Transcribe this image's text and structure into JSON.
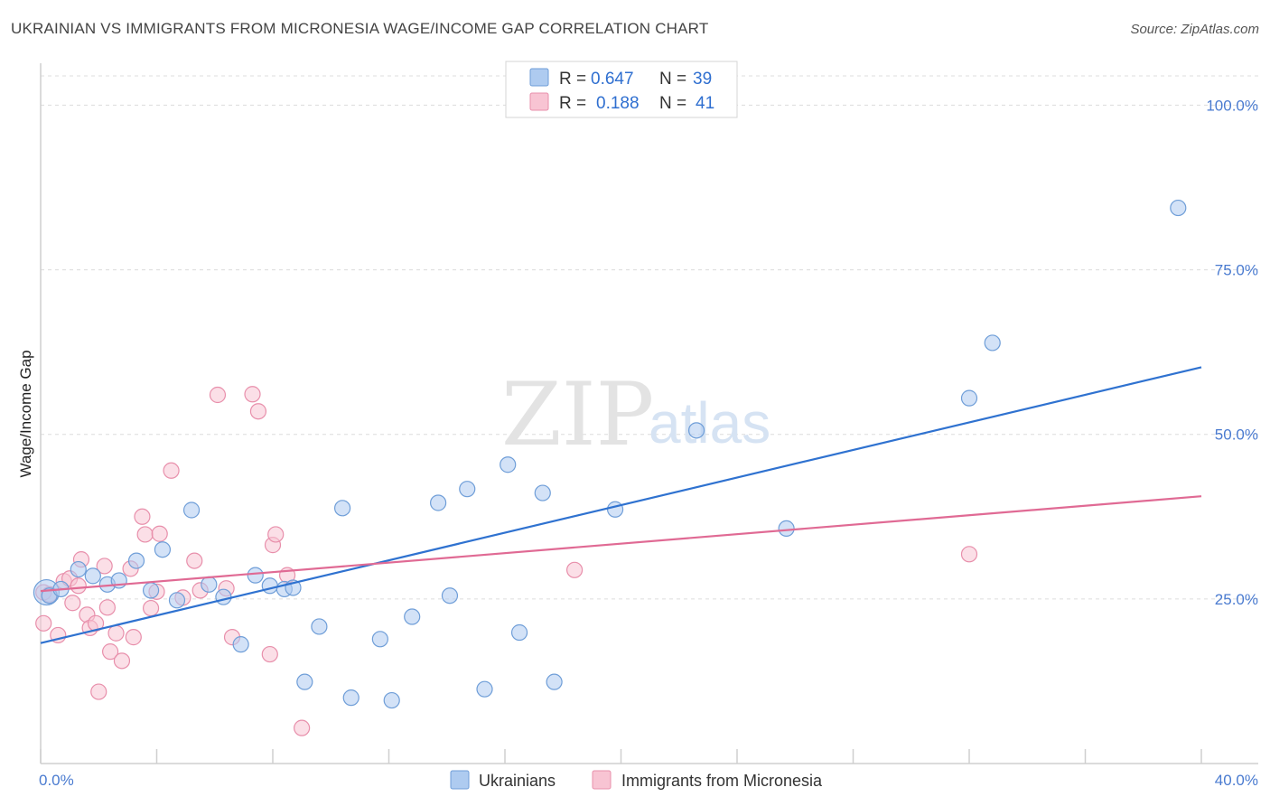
{
  "header": {
    "title": "UKRAINIAN VS IMMIGRANTS FROM MICRONESIA WAGE/INCOME GAP CORRELATION CHART",
    "source": "Source: ZipAtlas.com"
  },
  "watermark": {
    "zip": "ZIP",
    "atlas": "atlas"
  },
  "legend": {
    "row1": {
      "r_label": "R =",
      "r_value": "0.647",
      "n_label": "N =",
      "n_value": "39"
    },
    "row2": {
      "r_label": "R =",
      "r_value": "0.188",
      "n_label": "N =",
      "n_value": "41"
    }
  },
  "bottom_legend": {
    "series1": "Ukrainians",
    "series2": "Immigrants from Micronesia"
  },
  "colors": {
    "blue_fill": "#aecbf0",
    "blue_stroke": "#6f9ed8",
    "blue_line": "#2f72d0",
    "pink_fill": "#f8c4d3",
    "pink_stroke": "#e88fab",
    "pink_line": "#e06a94",
    "tick_text": "#4a7bd0",
    "grid": "#dcdcdc"
  },
  "chart_data": {
    "type": "scatter",
    "title": "UKRAINIAN VS IMMIGRANTS FROM MICRONESIA WAGE/INCOME GAP CORRELATION CHART",
    "xlabel": "",
    "ylabel": "Wage/Income Gap",
    "xlim": [
      0,
      40
    ],
    "ylim": [
      0,
      105
    ],
    "x_tick_labels": [
      "0.0%",
      "40.0%"
    ],
    "y_ticks": [
      25,
      50,
      75,
      100
    ],
    "y_tick_labels": [
      "25.0%",
      "50.0%",
      "75.0%",
      "100.0%"
    ],
    "grid": "horizontal dashed",
    "legend_position": "top-center",
    "series": [
      {
        "name": "Ukrainians",
        "R": 0.647,
        "N": 39,
        "trend": {
          "x": [
            0,
            40
          ],
          "y": [
            18.3,
            60.2
          ]
        },
        "points": [
          [
            0.3,
            25.5
          ],
          [
            0.7,
            26.5
          ],
          [
            1.3,
            29.5
          ],
          [
            1.8,
            28.5
          ],
          [
            2.3,
            27.2
          ],
          [
            2.7,
            27.8
          ],
          [
            3.3,
            30.8
          ],
          [
            3.8,
            26.3
          ],
          [
            4.2,
            32.5
          ],
          [
            4.7,
            24.8
          ],
          [
            5.2,
            38.5
          ],
          [
            5.8,
            27.2
          ],
          [
            6.3,
            25.3
          ],
          [
            6.9,
            18.1
          ],
          [
            7.4,
            28.6
          ],
          [
            7.9,
            27.0
          ],
          [
            8.4,
            26.5
          ],
          [
            8.7,
            26.7
          ],
          [
            9.1,
            12.4
          ],
          [
            9.6,
            20.8
          ],
          [
            10.4,
            38.8
          ],
          [
            10.7,
            10.0
          ],
          [
            11.7,
            18.9
          ],
          [
            12.1,
            9.6
          ],
          [
            12.8,
            22.3
          ],
          [
            13.7,
            39.6
          ],
          [
            14.1,
            25.5
          ],
          [
            14.7,
            41.7
          ],
          [
            15.3,
            11.3
          ],
          [
            16.1,
            45.4
          ],
          [
            16.5,
            19.9
          ],
          [
            17.3,
            41.1
          ],
          [
            17.7,
            12.4
          ],
          [
            19.8,
            38.6
          ],
          [
            22.6,
            50.6
          ],
          [
            25.7,
            35.7
          ],
          [
            32.0,
            55.5
          ],
          [
            32.8,
            63.9
          ],
          [
            39.2,
            84.4
          ]
        ]
      },
      {
        "name": "Immigrants from Micronesia",
        "R": 0.188,
        "N": 41,
        "trend": {
          "x": [
            0,
            40
          ],
          "y": [
            26.2,
            40.6
          ]
        },
        "points": [
          [
            0.1,
            21.3
          ],
          [
            0.3,
            25.7
          ],
          [
            0.6,
            19.5
          ],
          [
            0.8,
            27.7
          ],
          [
            1.0,
            28.1
          ],
          [
            1.1,
            24.4
          ],
          [
            1.3,
            27.0
          ],
          [
            1.4,
            31.0
          ],
          [
            1.6,
            22.6
          ],
          [
            1.7,
            20.6
          ],
          [
            1.9,
            21.3
          ],
          [
            2.0,
            10.9
          ],
          [
            2.2,
            30.0
          ],
          [
            2.3,
            23.7
          ],
          [
            2.4,
            17.0
          ],
          [
            2.6,
            19.8
          ],
          [
            2.8,
            15.6
          ],
          [
            3.1,
            29.6
          ],
          [
            3.2,
            19.2
          ],
          [
            3.5,
            37.5
          ],
          [
            3.6,
            34.8
          ],
          [
            3.8,
            23.6
          ],
          [
            4.0,
            26.1
          ],
          [
            4.1,
            34.9
          ],
          [
            4.5,
            44.5
          ],
          [
            4.9,
            25.2
          ],
          [
            5.3,
            30.8
          ],
          [
            5.5,
            26.3
          ],
          [
            6.1,
            56.0
          ],
          [
            6.4,
            26.6
          ],
          [
            6.6,
            19.2
          ],
          [
            7.3,
            56.1
          ],
          [
            7.5,
            53.5
          ],
          [
            7.9,
            16.6
          ],
          [
            8.0,
            33.2
          ],
          [
            8.1,
            34.8
          ],
          [
            8.5,
            28.6
          ],
          [
            9.0,
            5.4
          ],
          [
            18.4,
            29.4
          ],
          [
            32.0,
            31.8
          ],
          [
            0.1,
            26.0
          ]
        ]
      }
    ]
  }
}
